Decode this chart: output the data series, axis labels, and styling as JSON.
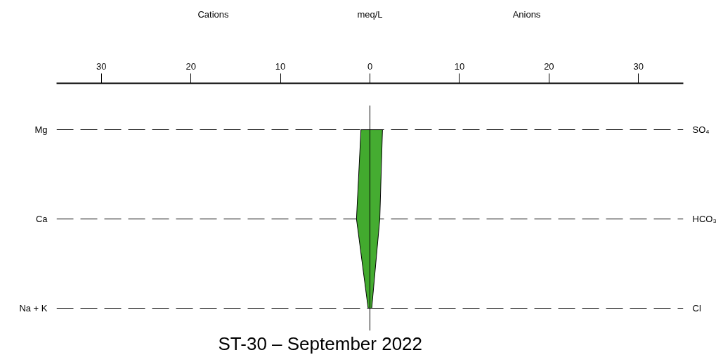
{
  "chart_data": {
    "type": "area",
    "orientation": "horizontal",
    "title": "ST-30 – September 2022",
    "xlabel": "meq/L",
    "annotations": [
      "Cations",
      "Anions"
    ],
    "categories": [
      "Mg",
      "Ca",
      "Na + K"
    ],
    "y2_categories": [
      "SO₄",
      "HCO₃",
      "Cl"
    ],
    "series": [
      {
        "color": "#42aa2e",
        "values": [
          -1.0,
          -1.5,
          -0.2
        ]
      },
      {
        "color": "#45ac31",
        "values": [
          1.4,
          1.1,
          0.2
        ]
      }
    ],
    "xlim": [
      -35,
      35
    ],
    "xticks": [
      {
        "value": -30,
        "label": "30"
      },
      {
        "value": -20,
        "label": "20"
      },
      {
        "value": -10,
        "label": "10"
      },
      0,
      10,
      20,
      30
    ],
    "ref_lines": [
      {
        "axis": "x",
        "value": 0
      }
    ],
    "grid": "y"
  }
}
